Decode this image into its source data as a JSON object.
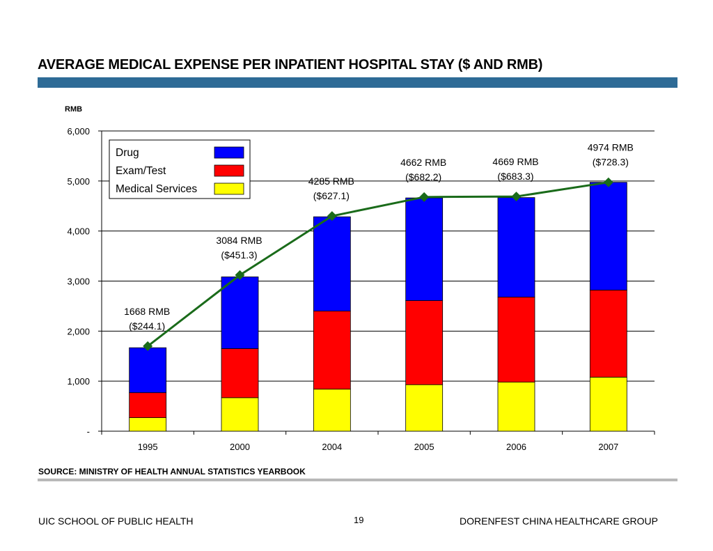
{
  "page": {
    "title": "AVERAGE MEDICAL EXPENSE PER INPATIENT HOSPITAL STAY ($ AND RMB)",
    "source": "SOURCE:  MINISTRY OF HEALTH ANNUAL STATISTICS YEARBOOK",
    "footer_left": "UIC SCHOOL OF PUBLIC HEALTH",
    "page_number": "19",
    "footer_right": "DORENFEST CHINA HEALTHCARE GROUP"
  },
  "colors": {
    "title_bar": "#2e6b96",
    "drug": "#0000ff",
    "exam_test": "#ff0000",
    "medical_services": "#ffff00",
    "trend_line": "#1a6b1a"
  },
  "chart_data": {
    "type": "bar",
    "stacked": true,
    "ylabel": "RMB",
    "ylim": [
      0,
      6000
    ],
    "y_ticks": [
      0,
      1000,
      2000,
      3000,
      4000,
      5000,
      6000
    ],
    "y_tick_labels": [
      "-",
      "1,000",
      "2,000",
      "3,000",
      "4,000",
      "5,000",
      "6,000"
    ],
    "grid": true,
    "legend_position": "top-left",
    "categories": [
      "1995",
      "2000",
      "2004",
      "2005",
      "2006",
      "2007"
    ],
    "series": [
      {
        "name": "Medical Services",
        "values": [
          270,
          670,
          840,
          930,
          980,
          1080
        ]
      },
      {
        "name": "Exam/Test",
        "values": [
          500,
          980,
          1560,
          1680,
          1700,
          1740
        ]
      },
      {
        "name": "Drug",
        "values": [
          898,
          1434,
          1885,
          2052,
          1989,
          2154
        ]
      }
    ],
    "legend_order": [
      "Drug",
      "Exam/Test",
      "Medical Services"
    ],
    "totals": [
      1668,
      3084,
      4285,
      4662,
      4669,
      4974
    ],
    "line_values": [
      1700,
      3120,
      4300,
      4680,
      4690,
      4974
    ],
    "annotations": [
      {
        "line1": "1668 RMB",
        "line2": "($244.1)"
      },
      {
        "line1": "3084 RMB",
        "line2": "($451.3)"
      },
      {
        "line1": "4285 RMB",
        "line2": "($627.1)"
      },
      {
        "line1": "4662 RMB",
        "line2": "($682.2)"
      },
      {
        "line1": "4669 RMB",
        "line2": "($683.3)"
      },
      {
        "line1": "4974 RMB",
        "line2": "($728.3)"
      }
    ]
  }
}
